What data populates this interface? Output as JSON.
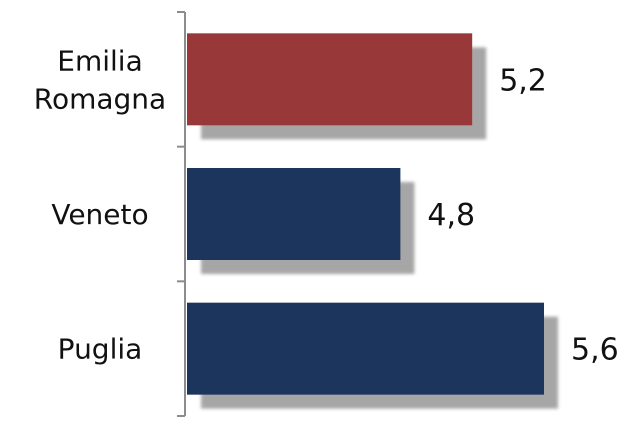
{
  "chart_data": {
    "type": "bar",
    "orientation": "horizontal",
    "categories": [
      "Emilia Romagna",
      "Veneto",
      "Puglia"
    ],
    "category_lines": [
      [
        "Emilia",
        "Romagna"
      ],
      [
        "Veneto"
      ],
      [
        "Puglia"
      ]
    ],
    "values": [
      5.2,
      4.8,
      5.6
    ],
    "value_labels": [
      "5,2",
      "4,8",
      "5,6"
    ],
    "bar_colors": [
      "#983838",
      "#1B365D",
      "#1B365D"
    ],
    "xlim": [
      3.6,
      5.6
    ],
    "title": "",
    "xlabel": "",
    "ylabel": "",
    "grid": false,
    "legend": "none"
  }
}
